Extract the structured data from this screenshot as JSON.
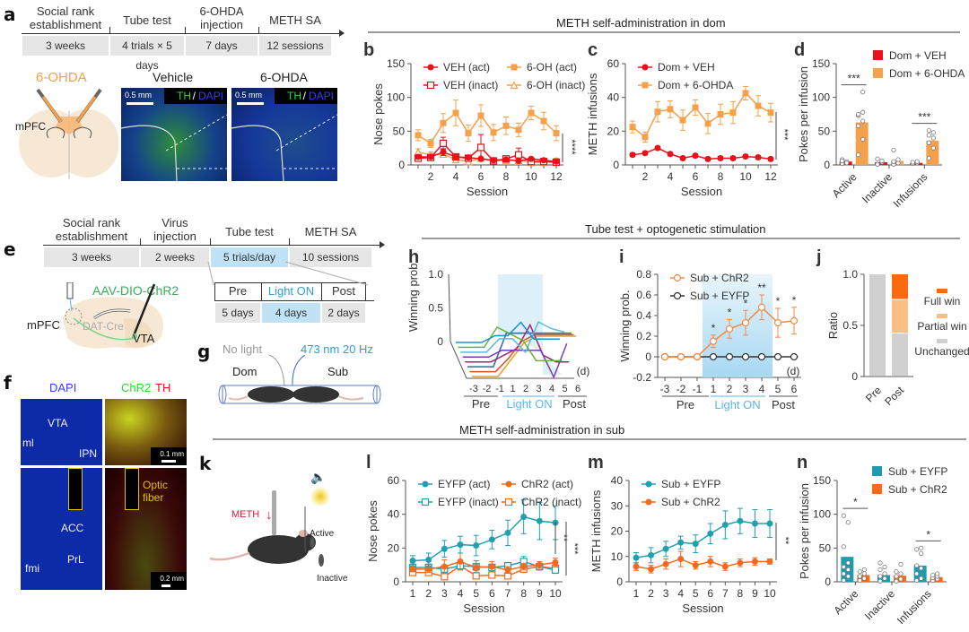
{
  "panels": {
    "a": {
      "label": "a",
      "timeline": {
        "stages": [
          "Social rank\nestablishment",
          "Tube test",
          "6-OHDA\ninjection",
          "METH SA"
        ],
        "durations": [
          "3 weeks",
          "4 trials × 5 days",
          "7 days",
          "12 sessions"
        ]
      },
      "schematic_label": "6-OHDA",
      "region_label": "mPFC",
      "image_titles": [
        "Vehicle",
        "6-OHDA"
      ],
      "stain_th": "TH",
      "stain_sep": "/",
      "stain_dapi": "DAPI",
      "scale_bar": "0.5 mm"
    },
    "section1_title": "METH self-administration in dom",
    "section2_title": "Tube test + optogenetic stimulation",
    "section3_title": "METH self-administration in sub",
    "e": {
      "label": "e",
      "timeline": {
        "stages": [
          "Social rank\nestablishment",
          "Virus\ninjection",
          "Tube test",
          "METH SA"
        ],
        "durations": [
          "3 weeks",
          "2 weeks",
          "5 trials/day",
          "10 sessions"
        ]
      },
      "sub_timeline": {
        "stages": [
          "Pre",
          "Light ON",
          "Post"
        ],
        "durations": [
          "5 days",
          "4 days",
          "2 days"
        ]
      },
      "virus_label": "AAV-DIO-ChR2",
      "mpfc_label": "mPFC",
      "cre_label": "DAT-Cre",
      "vta_label": "VTA"
    },
    "f": {
      "label": "f",
      "stain1": "DAPI",
      "stain2_a": "ChR2",
      "stain2_b": "TH",
      "regions_top": [
        "VTA",
        "ml",
        "IPN"
      ],
      "regions_bottom": [
        "ACC",
        "PrL",
        "fmi"
      ],
      "optic_label": "Optic\nfiber",
      "scale_top": "0.1 mm",
      "scale_bottom": "0.2 mm"
    },
    "g": {
      "label": "g",
      "no_light": "No light",
      "light": "473 nm 20 Hz",
      "dom": "Dom",
      "sub": "Sub"
    },
    "k": {
      "label": "k",
      "meth": "METH",
      "active": "Active",
      "inactive": "Inactive"
    }
  },
  "chart_data": [
    {
      "id": "b",
      "label": "b",
      "type": "line",
      "xlabel": "Session",
      "ylabel": "Nose pokes",
      "ylim": [
        0,
        150
      ],
      "yticks": [
        0,
        50,
        100,
        150
      ],
      "xticks": [
        2,
        4,
        6,
        8,
        10,
        12
      ],
      "x": [
        1,
        2,
        3,
        4,
        5,
        6,
        7,
        8,
        9,
        10,
        11,
        12
      ],
      "significance": "****",
      "series": [
        {
          "name": "VEH (act)",
          "color": "#e8101a",
          "marker": "circle-filled",
          "values": [
            12,
            12,
            19,
            12,
            11,
            9,
            7,
            8,
            6,
            9,
            7,
            5
          ],
          "err": [
            3,
            3,
            5,
            3,
            3,
            2,
            2,
            2,
            2,
            2,
            2,
            2
          ]
        },
        {
          "name": "6-OH (act)",
          "color": "#f5a04a",
          "marker": "square-filled",
          "values": [
            44,
            32,
            62,
            77,
            47,
            73,
            48,
            58,
            52,
            77,
            65,
            47
          ],
          "err": [
            8,
            6,
            14,
            19,
            12,
            16,
            12,
            13,
            10,
            10,
            13,
            11
          ]
        },
        {
          "name": "VEH (inact)",
          "color": "#e8101a",
          "marker": "square-open",
          "values": [
            10,
            11,
            32,
            12,
            10,
            26,
            6,
            9,
            15,
            5,
            5,
            4
          ],
          "err": [
            3,
            3,
            9,
            3,
            3,
            19,
            2,
            2,
            10,
            2,
            2,
            2
          ]
        },
        {
          "name": "6-OH (inact)",
          "color": "#f5a04a",
          "marker": "triangle-open",
          "values": [
            19,
            15,
            16,
            8,
            5,
            10,
            6,
            7,
            7,
            4,
            4,
            6
          ],
          "err": [
            5,
            4,
            4,
            3,
            2,
            3,
            2,
            2,
            2,
            2,
            2,
            4
          ]
        }
      ]
    },
    {
      "id": "c",
      "label": "c",
      "type": "line",
      "xlabel": "Session",
      "ylabel": "METH infusions",
      "ylim": [
        0,
        60
      ],
      "yticks": [
        0,
        20,
        40,
        60
      ],
      "xticks": [
        2,
        4,
        6,
        8,
        10,
        12
      ],
      "x": [
        1,
        2,
        3,
        4,
        5,
        6,
        7,
        8,
        9,
        10,
        11,
        12
      ],
      "significance": "***",
      "series": [
        {
          "name": "Dom + VEH",
          "color": "#e8101a",
          "marker": "circle-filled",
          "values": [
            6,
            7,
            10,
            6.5,
            4,
            5.5,
            3.5,
            4,
            4,
            5,
            4.5,
            3.5
          ],
          "err": [
            1,
            1,
            1,
            1,
            1,
            1,
            1,
            1,
            1,
            1,
            1,
            1
          ]
        },
        {
          "name": "Dom + 6-OHDA",
          "color": "#f5a04a",
          "marker": "square-filled",
          "values": [
            22.5,
            16.5,
            31.5,
            33,
            26.5,
            34,
            24.5,
            30,
            31,
            42.5,
            35,
            31
          ],
          "err": [
            3.5,
            3,
            6,
            5,
            6,
            4.5,
            6,
            6,
            6.5,
            4,
            6,
            5.5
          ]
        }
      ]
    },
    {
      "id": "d",
      "label": "d",
      "type": "bar",
      "ylabel": "Poks per infusion",
      "ylabel_text": "Pokes per infusion",
      "ylim": [
        0,
        150
      ],
      "yticks": [
        0,
        50,
        100,
        150
      ],
      "categories": [
        "Active",
        "Inactive",
        "Infusions"
      ],
      "significance": [
        "***",
        "",
        "***"
      ],
      "series": [
        {
          "name": "Dom + VEH",
          "color": "#e8101a",
          "values": [
            5,
            4,
            3
          ],
          "points": [
            [
              2,
              5,
              8,
              3,
              6
            ],
            [
              1,
              4,
              9,
              6
            ],
            [
              2,
              3,
              4,
              5
            ]
          ]
        },
        {
          "name": "Dom + 6-OHDA",
          "color": "#f5a04a",
          "values": [
            63,
            6,
            36
          ],
          "points": [
            [
              15,
              38,
              58,
              65,
              73,
              78,
              75,
              108
            ],
            [
              1,
              3,
              5,
              8,
              22
            ],
            [
              10,
              25,
              33,
              40,
              44,
              48,
              51
            ]
          ]
        }
      ]
    },
    {
      "id": "h",
      "label": "h",
      "type": "line",
      "ylabel": "Winning prob.",
      "yticks": [
        0,
        0.5,
        1.0
      ],
      "ytick_labels": [
        "0",
        "0.5",
        "1.0"
      ],
      "xticks": [
        "-3",
        "-2",
        "-1",
        "1",
        "2",
        "3",
        "4",
        "5",
        "6"
      ],
      "groups": [
        "Pre",
        "Light ON",
        "Post"
      ],
      "unit_label": "(d)",
      "note": "3D waterfall of individual animals",
      "series": [
        {
          "color": "#e6a02a",
          "values": [
            0,
            0,
            0,
            0.25,
            0.5,
            0.6,
            0.6,
            0.6,
            0.6
          ]
        },
        {
          "color": "#d2552a",
          "values": [
            0,
            0,
            0,
            0.2,
            0.45,
            0.55,
            0.55,
            0.55,
            0.55
          ]
        },
        {
          "color": "#2a6ab5",
          "values": [
            0,
            0,
            0,
            0.5,
            0.5,
            0.5,
            0.5,
            0.5,
            0.5
          ]
        },
        {
          "color": "#a22a6a",
          "values": [
            0,
            0,
            0,
            0.1,
            0.2,
            0.55,
            0.1,
            0,
            0
          ]
        },
        {
          "color": "#7a3ab0",
          "values": [
            0,
            0,
            0,
            0.1,
            0.1,
            0.1,
            0.1,
            -0.3,
            0.2
          ]
        },
        {
          "color": "#5ab7e8",
          "values": [
            0,
            0,
            0,
            0.2,
            0.2,
            0,
            0.45,
            0.35,
            0.3
          ]
        },
        {
          "color": "#6ab040",
          "values": [
            0,
            0,
            0,
            0.3,
            0.2,
            0.1,
            -0.2,
            -0.2,
            -0.2
          ]
        },
        {
          "color": "#1f8fc8",
          "values": [
            0,
            0,
            0,
            0.1,
            0.1,
            0.3,
            0.05,
            0.05,
            0.05
          ]
        }
      ]
    },
    {
      "id": "i",
      "label": "i",
      "type": "line",
      "ylabel": "Winning prob.",
      "ylim": [
        -0.2,
        0.8
      ],
      "yticks": [
        -0.2,
        0,
        0.2,
        0.4,
        0.6,
        0.8
      ],
      "ytick_labels": [
        "-0.2",
        "0",
        "0.2",
        "0.4",
        "0.6",
        "0.8"
      ],
      "x": [
        "-3",
        "-2",
        "-1",
        "1",
        "2",
        "3",
        "4",
        "5",
        "6"
      ],
      "groups": [
        "Pre",
        "Light ON",
        "Post"
      ],
      "unit_label": "(d)",
      "significance": [
        "",
        "",
        "",
        "*",
        "*",
        "*",
        "**",
        "*",
        "*"
      ],
      "series": [
        {
          "name": "Sub + ChR2",
          "color": "#f28a45",
          "marker": "circle-open",
          "values": [
            0,
            0,
            0,
            0.15,
            0.27,
            0.33,
            0.48,
            0.33,
            0.35
          ],
          "err": [
            0,
            0,
            0,
            0.06,
            0.09,
            0.12,
            0.12,
            0.14,
            0.13
          ]
        },
        {
          "name": "Sub + EYFP",
          "color": "#333333",
          "marker": "circle-open",
          "values": [
            0,
            0,
            0,
            0,
            0,
            0,
            0,
            0,
            0
          ],
          "err": [
            0,
            0,
            0,
            0,
            0,
            0,
            0,
            0,
            0
          ]
        }
      ]
    },
    {
      "id": "j",
      "label": "j",
      "type": "bar",
      "stacked": true,
      "ylabel": "Ratio",
      "ylim": [
        0,
        1
      ],
      "yticks": [
        0,
        0.5,
        1.0
      ],
      "ytick_labels": [
        "0",
        "0.5",
        "1.0"
      ],
      "categories": [
        "Pre",
        "Post"
      ],
      "series": [
        {
          "name": "Unchanged",
          "color": "#d0d0d0",
          "values": [
            1.0,
            0.42
          ]
        },
        {
          "name": "Partial win",
          "color": "#fbbf84",
          "values": [
            0,
            0.33
          ]
        },
        {
          "name": "Full win",
          "color": "#fb6a10",
          "values": [
            0,
            0.25
          ]
        }
      ]
    },
    {
      "id": "l",
      "label": "l",
      "type": "line",
      "xlabel": "Session",
      "ylabel": "Nose pokes",
      "ylim": [
        0,
        60
      ],
      "yticks": [
        0,
        20,
        40,
        60
      ],
      "x": [
        1,
        2,
        3,
        4,
        5,
        6,
        7,
        8,
        9,
        10
      ],
      "significance": [
        "**",
        "***"
      ],
      "series": [
        {
          "name": "EYFP (act)",
          "color": "#21a0b0",
          "marker": "circle-filled",
          "values": [
            12.5,
            13,
            19.5,
            22,
            21.5,
            25,
            29,
            38.5,
            36,
            35
          ],
          "err": [
            3,
            4,
            5,
            5,
            6,
            5.5,
            7.5,
            10,
            11,
            10
          ]
        },
        {
          "name": "ChR2 (act)",
          "color": "#f26b1d",
          "marker": "circle-filled",
          "values": [
            7.5,
            7.5,
            9,
            12,
            8.5,
            9,
            7,
            9,
            10,
            11.5
          ],
          "err": [
            1.5,
            2,
            4,
            5,
            2,
            3,
            2,
            2,
            2,
            2.5
          ]
        },
        {
          "name": "EYFP (inact)",
          "color": "#21a0b0",
          "marker": "square-open",
          "values": [
            8.5,
            8.5,
            7.5,
            9.5,
            9,
            8.5,
            9.5,
            12,
            9,
            7
          ],
          "err": [
            2,
            2,
            2,
            2,
            3.5,
            2,
            2,
            3,
            2,
            2
          ]
        },
        {
          "name": "ChR2 (inact)",
          "color": "#f26b1d",
          "marker": "square-open",
          "values": [
            5.5,
            5.5,
            3,
            9.5,
            3.5,
            4,
            3.5,
            7.5,
            9,
            8
          ],
          "err": [
            1.5,
            1.5,
            1,
            2,
            1,
            1,
            1,
            2,
            2,
            2
          ]
        }
      ]
    },
    {
      "id": "m",
      "label": "m",
      "type": "line",
      "xlabel": "Session",
      "ylabel": "METH infusions",
      "ylim": [
        0,
        40
      ],
      "yticks": [
        0,
        10,
        20,
        30,
        40
      ],
      "x": [
        1,
        2,
        3,
        4,
        5,
        6,
        7,
        8,
        9,
        10
      ],
      "significance": "**",
      "series": [
        {
          "name": "Sub + EYFP",
          "color": "#21a0b0",
          "marker": "circle-filled",
          "values": [
            9.5,
            10.5,
            13,
            15.5,
            15,
            19,
            22.5,
            24,
            23,
            23
          ],
          "err": [
            2,
            3,
            3,
            2.5,
            3.5,
            4,
            5.5,
            5,
            5.5,
            5.5
          ]
        },
        {
          "name": "Sub + ChR2",
          "color": "#f26b1d",
          "marker": "circle-filled",
          "values": [
            6,
            5,
            7,
            9,
            6.5,
            8,
            6,
            7.5,
            8,
            8
          ],
          "err": [
            1.5,
            1.5,
            2,
            3,
            1.5,
            2,
            1.5,
            1.5,
            1.5,
            1
          ]
        }
      ]
    },
    {
      "id": "n",
      "label": "n",
      "type": "bar",
      "ylabel": "Pokes per infusion",
      "ylim": [
        0,
        150
      ],
      "yticks": [
        0,
        50,
        100,
        150
      ],
      "categories": [
        "Active",
        "Inactive",
        "Infusions"
      ],
      "significance": [
        "*",
        "",
        "*"
      ],
      "series": [
        {
          "name": "Sub + EYFP",
          "color": "#1f9bb0",
          "values": [
            37,
            10,
            24
          ],
          "points": [
            [
              2,
              8,
              12,
              18,
              22,
              28,
              52,
              88,
              98
            ],
            [
              1,
              5,
              8,
              12,
              18,
              22,
              28
            ],
            [
              2,
              5,
              12,
              20,
              24,
              42,
              48,
              50
            ]
          ]
        },
        {
          "name": "Sub + ChR2",
          "color": "#fb6a10",
          "values": [
            10,
            9,
            7
          ],
          "points": [
            [
              2,
              5,
              8,
              12,
              15,
              18
            ],
            [
              1,
              4,
              8,
              12,
              15,
              26
            ],
            [
              2,
              4,
              6,
              8,
              10,
              12
            ]
          ]
        }
      ]
    }
  ]
}
